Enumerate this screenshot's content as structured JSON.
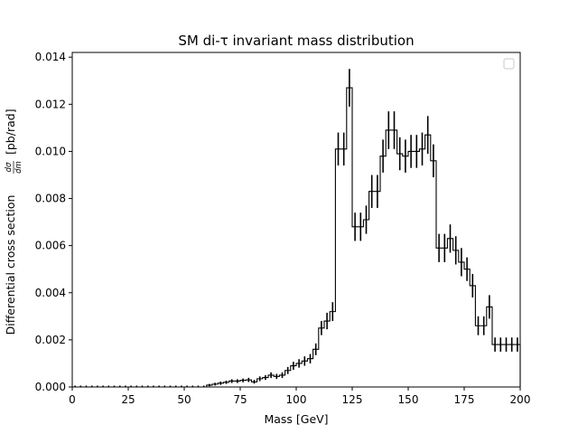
{
  "chart_data": {
    "type": "histogram",
    "title": "SM di-τ invariant mass distribution",
    "xlabel": "Mass [GeV]",
    "ylabel_prefix": "Differential cross section",
    "ylabel_fraction_num": "dσ",
    "ylabel_fraction_den": "dm",
    "ylabel_suffix": "[pb/rad]",
    "xlim": [
      0,
      200
    ],
    "ylim": [
      0,
      0.0142
    ],
    "xticks": [
      0,
      25,
      50,
      75,
      100,
      125,
      150,
      175,
      200
    ],
    "xtick_labels": [
      "0",
      "25",
      "50",
      "75",
      "100",
      "125",
      "150",
      "175",
      "200"
    ],
    "yticks": [
      0,
      0.002,
      0.004,
      0.006,
      0.008,
      0.01,
      0.012,
      0.014
    ],
    "ytick_labels": [
      "0.000",
      "0.002",
      "0.004",
      "0.006",
      "0.008",
      "0.010",
      "0.012",
      "0.014"
    ],
    "bin_width": 2.5,
    "bin_edges_start": 0,
    "values": [
      0,
      0,
      0,
      0,
      0,
      0,
      0,
      0,
      0,
      0,
      0,
      0,
      0,
      0,
      0,
      0,
      0,
      0,
      0,
      0,
      0,
      0,
      0,
      0,
      8e-05,
      0.00012,
      0.00016,
      0.0002,
      0.00025,
      0.00025,
      0.00028,
      0.0003,
      0.00022,
      0.00035,
      0.0004,
      0.0005,
      0.00045,
      0.0005,
      0.0007,
      0.0009,
      0.001,
      0.0011,
      0.0012,
      0.0016,
      0.0025,
      0.0028,
      0.0032,
      0.0101,
      0.0101,
      0.0127,
      0.0068,
      0.0068,
      0.0071,
      0.0083,
      0.0083,
      0.0098,
      0.0109,
      0.0109,
      0.0099,
      0.0098,
      0.01,
      0.01,
      0.0101,
      0.0107,
      0.0096,
      0.0059,
      0.0059,
      0.0063,
      0.0058,
      0.0053,
      0.005,
      0.0043,
      0.0026,
      0.0026,
      0.0034,
      0.0018,
      0.0018,
      0.0018,
      0.0018,
      0.0018
    ],
    "errors": [
      0,
      0,
      0,
      0,
      0,
      0,
      0,
      0,
      0,
      0,
      0,
      0,
      0,
      0,
      0,
      0,
      0,
      0,
      0,
      0,
      0,
      0,
      0,
      0,
      5e-05,
      6e-05,
      7e-05,
      7e-05,
      8e-05,
      8e-05,
      8e-05,
      9e-05,
      8e-05,
      0.0001,
      0.0001,
      0.00012,
      0.00011,
      0.00012,
      0.00015,
      0.00017,
      0.00018,
      0.0002,
      0.0002,
      0.00025,
      0.0003,
      0.00035,
      0.0004,
      0.0007,
      0.0007,
      0.0008,
      0.0006,
      0.0006,
      0.0006,
      0.0007,
      0.0007,
      0.0007,
      0.0008,
      0.0008,
      0.0007,
      0.0007,
      0.0007,
      0.0007,
      0.0007,
      0.0008,
      0.0007,
      0.0006,
      0.0006,
      0.0006,
      0.0006,
      0.0006,
      0.0005,
      0.0005,
      0.0004,
      0.0004,
      0.0005,
      0.0003,
      0.0003,
      0.0003,
      0.0003,
      0.0003
    ],
    "grid": false,
    "legend": {
      "placement": "top-right",
      "entries": []
    }
  }
}
